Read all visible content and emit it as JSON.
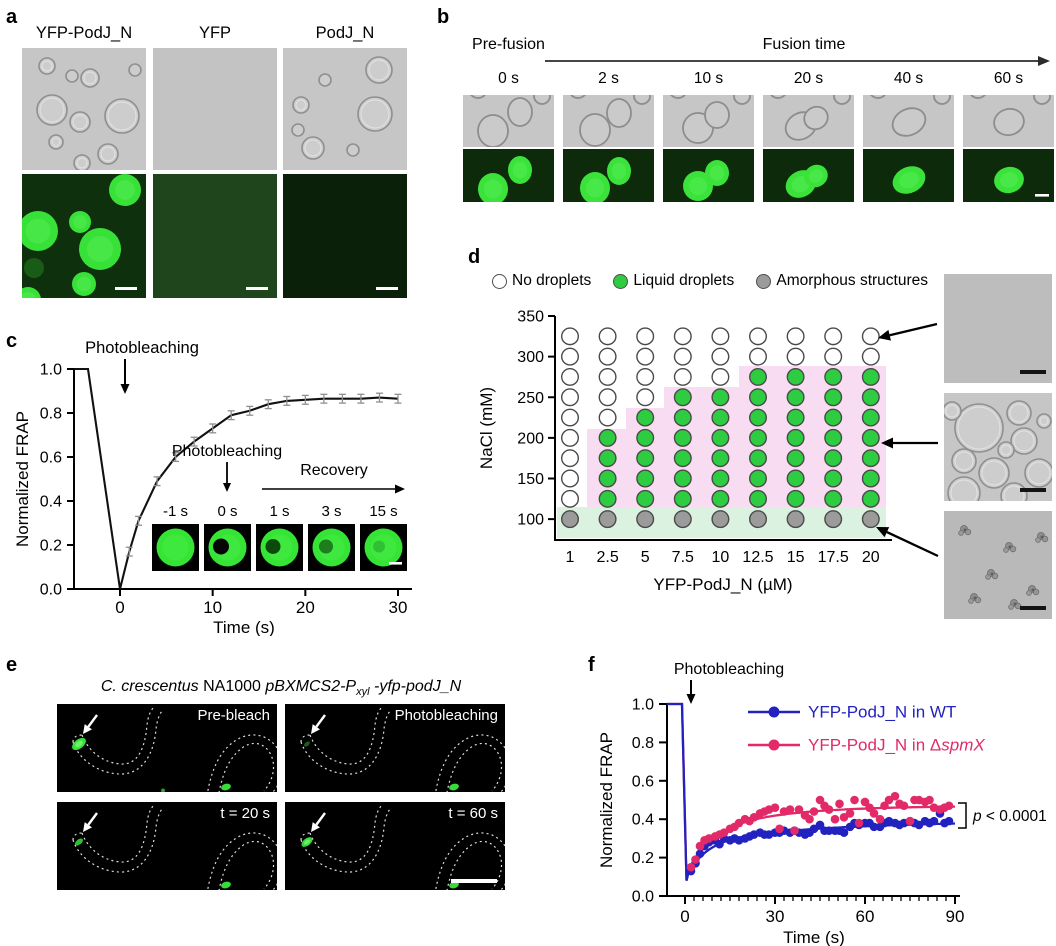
{
  "panels": {
    "a": {
      "label": "a",
      "columns": [
        "YFP-PodJ_N",
        "YFP",
        "PodJ_N"
      ]
    },
    "b": {
      "label": "b",
      "pre_fusion": "Pre-fusion",
      "fusion_time": "Fusion time",
      "times": [
        "0 s",
        "2 s",
        "10 s",
        "20 s",
        "40 s",
        "60 s"
      ]
    },
    "c": {
      "label": "c",
      "annotation": "Photobleaching",
      "inset": {
        "annotation": "Photobleaching",
        "recovery": "Recovery",
        "times": [
          "-1 s",
          "0 s",
          "1 s",
          "3 s",
          "15 s"
        ]
      }
    },
    "d": {
      "label": "d",
      "legend": [
        {
          "label": "No droplets",
          "fill": "#ffffff"
        },
        {
          "label": "Liquid droplets",
          "fill": "#2ecc40"
        },
        {
          "label": "Amorphous structures",
          "fill": "#9b9b9b"
        }
      ]
    },
    "e": {
      "label": "e",
      "title": {
        "species": "C. crescentus",
        "strain": " NA1000  ",
        "plasmid": "pBXMCS2-P",
        "promoter_sub": "xyl",
        "fusion": " -yfp-podJ_N"
      },
      "frames": [
        "Pre-bleach",
        "Photobleaching",
        "t = 20 s",
        "t = 60 s"
      ]
    },
    "f": {
      "label": "f",
      "annotation": "Photobleaching",
      "p_value": {
        "symbol": "p",
        "rest": " < 0.0001"
      }
    }
  },
  "chart_data": [
    {
      "id": "frap_in_vitro",
      "type": "line",
      "xlabel": "Time (s)",
      "ylabel": "Normalized FRAP",
      "xlim": [
        -5,
        30
      ],
      "ylim": [
        0,
        1
      ],
      "xticks": [
        0,
        10,
        20,
        30
      ],
      "yticks": [
        0,
        0.2,
        0.4,
        0.6,
        0.8,
        1.0
      ],
      "prebleach_level": 1.0,
      "bleach_time": 0,
      "bleach_level": 0.0,
      "points": [
        [
          1,
          0.17
        ],
        [
          2,
          0.31
        ],
        [
          4,
          0.49
        ],
        [
          6,
          0.6
        ],
        [
          8,
          0.67
        ],
        [
          10,
          0.73
        ],
        [
          12,
          0.79
        ],
        [
          14,
          0.81
        ],
        [
          16,
          0.84
        ],
        [
          18,
          0.855
        ],
        [
          20,
          0.86
        ],
        [
          22,
          0.865
        ],
        [
          24,
          0.865
        ],
        [
          26,
          0.865
        ],
        [
          28,
          0.87
        ],
        [
          30,
          0.865
        ]
      ],
      "error": 0.02
    },
    {
      "id": "phase_diagram",
      "type": "scatter",
      "xlabel": "YFP-PodJ_N (µM)",
      "ylabel": "NaCl (mM)",
      "x_categories": [
        "1",
        "2.5",
        "5",
        "7.5",
        "10",
        "12.5",
        "15",
        "17.5",
        "20"
      ],
      "yticks": [
        100,
        150,
        200,
        250,
        300,
        350
      ],
      "state_colors": {
        "0": "#ffffff",
        "1": "#2ecc40",
        "2": "#9b9b9b"
      },
      "state_names": {
        "0": "No droplets",
        "1": "Liquid droplets",
        "2": "Amorphous structures"
      },
      "rows": [
        {
          "nacl": 325,
          "states": [
            0,
            0,
            0,
            0,
            0,
            0,
            0,
            0,
            0
          ]
        },
        {
          "nacl": 300,
          "states": [
            0,
            0,
            0,
            0,
            0,
            0,
            0,
            0,
            0
          ]
        },
        {
          "nacl": 275,
          "states": [
            0,
            0,
            0,
            0,
            0,
            1,
            1,
            1,
            1
          ]
        },
        {
          "nacl": 250,
          "states": [
            0,
            0,
            0,
            1,
            1,
            1,
            1,
            1,
            1
          ]
        },
        {
          "nacl": 225,
          "states": [
            0,
            0,
            1,
            1,
            1,
            1,
            1,
            1,
            1
          ]
        },
        {
          "nacl": 200,
          "states": [
            0,
            1,
            1,
            1,
            1,
            1,
            1,
            1,
            1
          ]
        },
        {
          "nacl": 175,
          "states": [
            0,
            1,
            1,
            1,
            1,
            1,
            1,
            1,
            1
          ]
        },
        {
          "nacl": 150,
          "states": [
            0,
            1,
            1,
            1,
            1,
            1,
            1,
            1,
            1
          ]
        },
        {
          "nacl": 125,
          "states": [
            0,
            1,
            1,
            1,
            1,
            1,
            1,
            1,
            1
          ]
        },
        {
          "nacl": 100,
          "states": [
            2,
            2,
            2,
            2,
            2,
            2,
            2,
            2,
            2
          ]
        }
      ],
      "region_liquid_color": "#f8dcf2",
      "region_amorphous_color": "#dcf2e0"
    },
    {
      "id": "frap_in_vivo",
      "type": "scatter-line",
      "xlabel": "Time (s)",
      "ylabel": "Normalized FRAP",
      "xlim": [
        -6,
        90
      ],
      "ylim": [
        0,
        1
      ],
      "xticks": [
        0,
        30,
        60,
        90
      ],
      "yticks": [
        0,
        0.2,
        0.4,
        0.6,
        0.8,
        1.0
      ],
      "x_minor_step": 3,
      "prebleach_level": 1.0,
      "bleach_level": 0.08,
      "series": [
        {
          "name_prefix": "YFP-PodJ_N in WT",
          "name_italic": "",
          "color": "#2222c0",
          "fit": {
            "plateau": 0.39,
            "a1": 0.19,
            "tau1": 6,
            "a2": 0.12,
            "tau2": 40
          },
          "points": [
            [
              2,
              0.13
            ],
            [
              3.5,
              0.17
            ],
            [
              5,
              0.22
            ],
            [
              6.5,
              0.26
            ],
            [
              8,
              0.28
            ],
            [
              10,
              0.29
            ],
            [
              11.5,
              0.27
            ],
            [
              13,
              0.3
            ],
            [
              15,
              0.29
            ],
            [
              16.5,
              0.3
            ],
            [
              18,
              0.29
            ],
            [
              20,
              0.3
            ],
            [
              21.5,
              0.31
            ],
            [
              23,
              0.32
            ],
            [
              25,
              0.33
            ],
            [
              26.5,
              0.32
            ],
            [
              28,
              0.32
            ],
            [
              30,
              0.33
            ],
            [
              31.5,
              0.33
            ],
            [
              33,
              0.34
            ],
            [
              35,
              0.33
            ],
            [
              36.5,
              0.34
            ],
            [
              38,
              0.33
            ],
            [
              40,
              0.32
            ],
            [
              41.5,
              0.33
            ],
            [
              43,
              0.35
            ],
            [
              45,
              0.37
            ],
            [
              46.5,
              0.34
            ],
            [
              48,
              0.34
            ],
            [
              50,
              0.34
            ],
            [
              51.5,
              0.34
            ],
            [
              53,
              0.33
            ],
            [
              55,
              0.36
            ],
            [
              56.5,
              0.38
            ],
            [
              58,
              0.37
            ],
            [
              60,
              0.38
            ],
            [
              61.5,
              0.38
            ],
            [
              63,
              0.36
            ],
            [
              65,
              0.36
            ],
            [
              66.5,
              0.38
            ],
            [
              68,
              0.39
            ],
            [
              70,
              0.38
            ],
            [
              71.5,
              0.37
            ],
            [
              73,
              0.38
            ],
            [
              75,
              0.39
            ],
            [
              76.5,
              0.38
            ],
            [
              78,
              0.37
            ],
            [
              80,
              0.39
            ],
            [
              81.5,
              0.38
            ],
            [
              83,
              0.39
            ],
            [
              85,
              0.43
            ],
            [
              86.5,
              0.38
            ],
            [
              88,
              0.39
            ]
          ]
        },
        {
          "name_prefix": "YFP-PodJ_N in Δ",
          "name_italic": "spmX",
          "color": "#e22a68",
          "fit": {
            "plateau": 0.47,
            "a1": 0.23,
            "tau1": 7,
            "a2": 0.16,
            "tau2": 25
          },
          "points": [
            [
              2,
              0.15
            ],
            [
              3.5,
              0.19
            ],
            [
              5,
              0.26
            ],
            [
              6.5,
              0.29
            ],
            [
              8,
              0.3
            ],
            [
              10,
              0.31
            ],
            [
              11.5,
              0.32
            ],
            [
              13,
              0.33
            ],
            [
              15,
              0.35
            ],
            [
              16.5,
              0.36
            ],
            [
              18,
              0.38
            ],
            [
              20,
              0.4
            ],
            [
              21.5,
              0.39
            ],
            [
              23,
              0.41
            ],
            [
              25,
              0.43
            ],
            [
              26.5,
              0.44
            ],
            [
              28,
              0.45
            ],
            [
              30,
              0.46
            ],
            [
              31.5,
              0.35
            ],
            [
              33,
              0.44
            ],
            [
              35,
              0.45
            ],
            [
              36.5,
              0.34
            ],
            [
              38,
              0.45
            ],
            [
              40,
              0.42
            ],
            [
              41.5,
              0.4
            ],
            [
              43,
              0.44
            ],
            [
              45,
              0.5
            ],
            [
              46.5,
              0.47
            ],
            [
              48,
              0.45
            ],
            [
              50,
              0.4
            ],
            [
              51.5,
              0.48
            ],
            [
              53,
              0.41
            ],
            [
              55,
              0.43
            ],
            [
              56.5,
              0.5
            ],
            [
              58,
              0.38
            ],
            [
              60,
              0.49
            ],
            [
              61.5,
              0.46
            ],
            [
              63,
              0.43
            ],
            [
              65,
              0.4
            ],
            [
              66.5,
              0.47
            ],
            [
              68,
              0.5
            ],
            [
              70,
              0.52
            ],
            [
              71.5,
              0.48
            ],
            [
              73,
              0.47
            ],
            [
              75,
              0.39
            ],
            [
              76.5,
              0.5
            ],
            [
              78,
              0.5
            ],
            [
              80,
              0.49
            ],
            [
              81.5,
              0.5
            ],
            [
              83,
              0.46
            ],
            [
              85,
              0.45
            ],
            [
              86.5,
              0.46
            ],
            [
              88,
              0.47
            ]
          ]
        }
      ]
    }
  ]
}
